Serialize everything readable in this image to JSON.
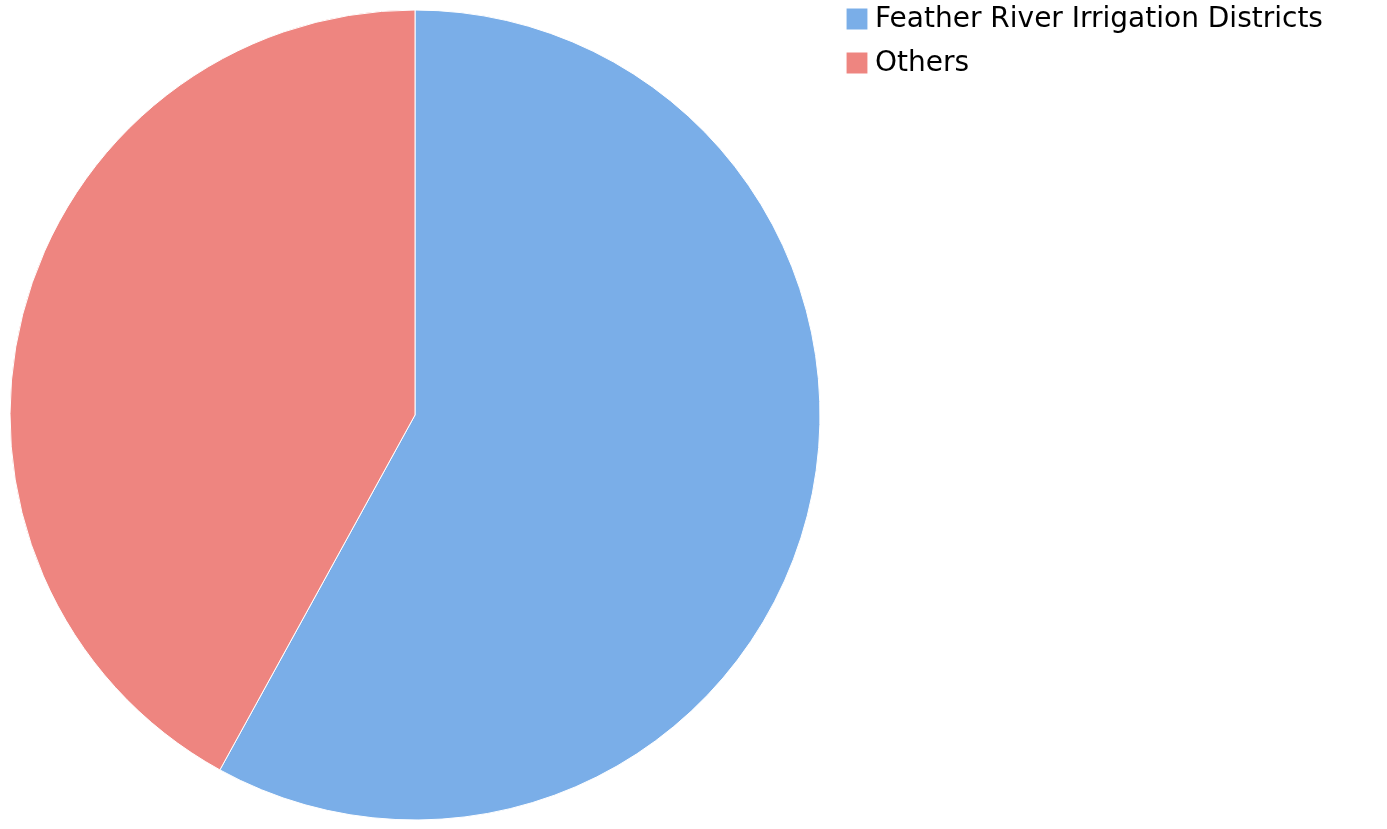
{
  "chart_data": {
    "type": "pie",
    "categories": [
      "Feather River Irrigation Districts",
      "Others"
    ],
    "values": [
      58,
      42
    ],
    "colors": [
      "#7aaee8",
      "#ee8580"
    ],
    "legend": "right"
  }
}
